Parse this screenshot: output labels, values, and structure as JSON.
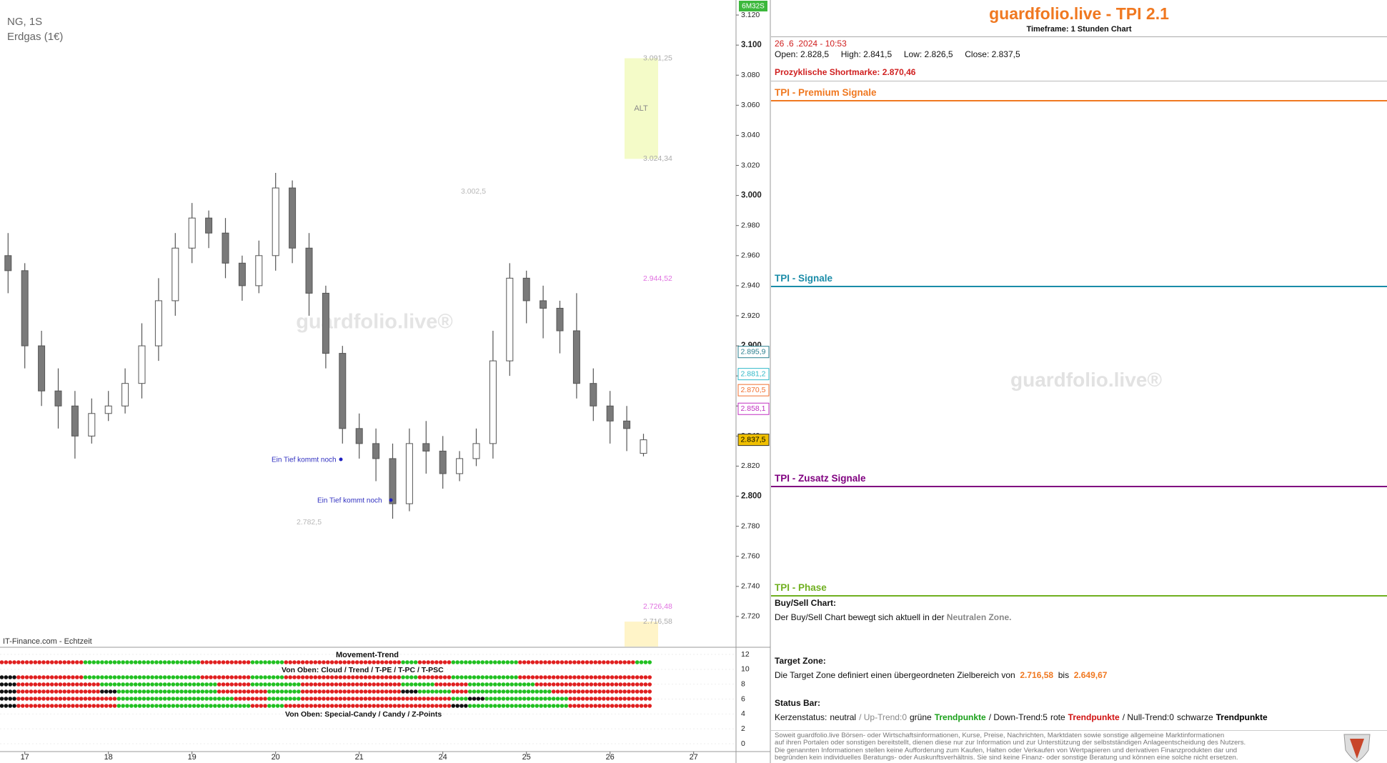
{
  "chart_data": {
    "type": "candlestick",
    "symbol": "NG, 1S",
    "name": "Erdgas (1€)",
    "source": "IT-Finance.com - Echtzeit",
    "timer": "6M32S",
    "watermark": "guardfolio.live®",
    "categories": [
      null,
      "17",
      null,
      null,
      null,
      null,
      "18",
      null,
      null,
      null,
      null,
      "19",
      null,
      null,
      null,
      null,
      "20",
      null,
      null,
      null,
      null,
      "21",
      null,
      null,
      null,
      null,
      "24",
      null,
      null,
      null,
      null,
      "25",
      null,
      null,
      null,
      null,
      "26",
      null,
      null,
      null,
      null,
      "27",
      null,
      null
    ],
    "open": [
      2.96,
      2.95,
      2.9,
      2.87,
      2.86,
      2.84,
      2.855,
      2.86,
      2.875,
      2.9,
      2.93,
      2.965,
      2.985,
      2.975,
      2.955,
      2.94,
      2.96,
      3.005,
      2.965,
      2.935,
      2.895,
      2.845,
      2.835,
      2.825,
      2.795,
      2.835,
      2.83,
      2.815,
      2.825,
      2.835,
      2.89,
      2.945,
      2.93,
      2.925,
      2.91,
      2.875,
      2.86,
      2.85,
      2.8285,
      null,
      null,
      null,
      null,
      null
    ],
    "high": [
      2.975,
      2.955,
      2.91,
      2.885,
      2.87,
      2.865,
      2.87,
      2.885,
      2.915,
      2.945,
      2.975,
      2.995,
      2.99,
      2.985,
      2.96,
      2.97,
      3.015,
      3.01,
      2.975,
      2.94,
      2.9,
      2.855,
      2.845,
      2.835,
      2.845,
      2.85,
      2.84,
      2.83,
      2.845,
      2.91,
      2.955,
      2.95,
      2.94,
      2.93,
      2.935,
      2.885,
      2.87,
      2.86,
      2.8415,
      null,
      null,
      null,
      null,
      null
    ],
    "low": [
      2.935,
      2.885,
      2.86,
      2.845,
      2.825,
      2.835,
      2.85,
      2.855,
      2.865,
      2.89,
      2.92,
      2.955,
      2.965,
      2.945,
      2.93,
      2.935,
      2.95,
      2.955,
      2.92,
      2.885,
      2.835,
      2.825,
      2.81,
      2.785,
      2.79,
      2.815,
      2.805,
      2.81,
      2.82,
      2.825,
      2.88,
      2.915,
      2.905,
      2.895,
      2.865,
      2.85,
      2.835,
      2.83,
      2.8265,
      null,
      null,
      null,
      null,
      null
    ],
    "close": [
      2.95,
      2.9,
      2.87,
      2.86,
      2.84,
      2.855,
      2.86,
      2.875,
      2.9,
      2.93,
      2.965,
      2.985,
      2.975,
      2.955,
      2.94,
      2.96,
      3.005,
      2.965,
      2.935,
      2.895,
      2.845,
      2.835,
      2.825,
      2.795,
      2.835,
      2.83,
      2.815,
      2.825,
      2.835,
      2.89,
      2.945,
      2.93,
      2.925,
      2.91,
      2.875,
      2.86,
      2.85,
      2.845,
      2.8375,
      null,
      null,
      null,
      null,
      null
    ],
    "up_color": "#ffffff",
    "down_color": "#7a7a7a",
    "wick_color": "#555555",
    "ylim": [
      2.7,
      3.13
    ],
    "yticks": [
      {
        "value": 3.12,
        "label": "3.120"
      },
      {
        "value": 3.1,
        "label": "3.100"
      },
      {
        "value": 3.08,
        "label": "3.080"
      },
      {
        "value": 3.06,
        "label": "3.060"
      },
      {
        "value": 3.04,
        "label": "3.040"
      },
      {
        "value": 3.02,
        "label": "3.020"
      },
      {
        "value": 3.0,
        "label": "3.000"
      },
      {
        "value": 2.98,
        "label": "2.980"
      },
      {
        "value": 2.96,
        "label": "2.960"
      },
      {
        "value": 2.94,
        "label": "2.940"
      },
      {
        "value": 2.92,
        "label": "2.920"
      },
      {
        "value": 2.9,
        "label": "2.900"
      },
      {
        "value": 2.88,
        "label": "2.880"
      },
      {
        "value": 2.86,
        "label": "2.860"
      },
      {
        "value": 2.84,
        "label": "2.840"
      },
      {
        "value": 2.82,
        "label": "2.820"
      },
      {
        "value": 2.8,
        "label": "2.800"
      },
      {
        "value": 2.78,
        "label": "2.780"
      },
      {
        "value": 2.76,
        "label": "2.760"
      },
      {
        "value": 2.74,
        "label": "2.740"
      },
      {
        "value": 2.72,
        "label": "2.720"
      }
    ],
    "price_markers": [
      {
        "value": 2.8959,
        "label": "2.895,9",
        "color": "#2a7f8f",
        "style": "outline"
      },
      {
        "value": 2.8812,
        "label": "2.881,2",
        "color": "#30b8c8",
        "style": "outline"
      },
      {
        "value": 2.8705,
        "label": "2.870,5",
        "color": "#f07030",
        "style": "outline"
      },
      {
        "value": 2.8581,
        "label": "2.858,1",
        "color": "#c030c0",
        "style": "outline"
      },
      {
        "value": 2.8375,
        "label": "2.837,5",
        "color": "#f0c000",
        "style": "filled"
      }
    ],
    "alt_zone": {
      "label": "ALT",
      "top": 3.09125,
      "bottom": 3.02434,
      "top_label": "3.091,25",
      "bottom_label": "3.024,34",
      "color": "#f4fbc8"
    },
    "target_zone": {
      "top": 2.71658,
      "top_label": "2.716,58",
      "color": "#fff4c8"
    },
    "price_labels": [
      {
        "value": 3.0025,
        "label": "3.002,5",
        "color": "#b8b8b8"
      },
      {
        "value": 2.94452,
        "label": "2.944,52",
        "color": "#e070e0"
      },
      {
        "value": 2.7825,
        "label": "2.782,5",
        "color": "#b8b8b8"
      },
      {
        "value": 2.72648,
        "label": "2.726,48",
        "color": "#e070e0"
      }
    ],
    "annotations": [
      "Ein Tief kommt noch",
      "Ein Tief kommt noch"
    ]
  },
  "indicator": {
    "title": "Movement-Trend",
    "label_upper": "Von Oben: Cloud / Trend / T-PE / T-PC / T-PSC",
    "label_lower": "Von Oben: Special-Candy / Candy / Z-Points",
    "ylim": [
      0,
      12
    ],
    "yticks": [
      0,
      2,
      4,
      6,
      8,
      10,
      12
    ],
    "up_color": "#22c022",
    "down_color": "#e02020",
    "flat_color": "#111111"
  },
  "panel": {
    "title": "guardfolio.live - TPI 2.1",
    "timeframe": "Timeframe: 1 Stunden Chart",
    "datetime": "26 .6 .2024 - 10:53",
    "ohlc": [
      [
        "Open:",
        "2.828,5"
      ],
      [
        "High:",
        "2.841,5"
      ],
      [
        "Low:",
        "2.826,5"
      ],
      [
        "Close:",
        "2.837,5"
      ]
    ],
    "shortmark": [
      "Prozyklische Shortmarke:",
      "2.870,46"
    ],
    "sections": [
      {
        "title": "TPI - Premium Signale",
        "color": "#f07820"
      },
      {
        "title": "TPI - Signale",
        "color": "#1a8ca8"
      },
      {
        "title": "TPI - Zusatz Signale",
        "color": "#800080"
      },
      {
        "title": "TPI - Phase",
        "color": "#70b020"
      }
    ],
    "watermark": "guardfolio.live®",
    "buysell": {
      "title": "Buy/Sell Chart:",
      "text": "Der Buy/Sell Chart bewegt sich aktuell in der",
      "zone": "Neutralen Zone."
    },
    "target": {
      "title": "Target Zone:",
      "text": "Die Target Zone definiert einen übergeordneten Zielbereich von",
      "from": "2.716,58",
      "sep": "bis",
      "to": "2.649,67"
    },
    "status": {
      "title": "Status Bar:",
      "parts": [
        "Kerzenstatus:",
        "neutral",
        "/ Up-Trend:0",
        "grüne",
        "Trendpunkte",
        "/ Down-Trend:5",
        "rote",
        "Trendpunkte",
        "/ Null-Trend:0",
        "schwarze",
        "Trendpunkte"
      ]
    },
    "disclaimer": [
      "Soweit guardfolio.live Börsen- oder Wirtschaftsinformationen, Kurse, Preise, Nachrichten, Marktdaten sowie sonstige allgemeine Marktinformationen",
      "auf ihren Portalen oder sonstigen bereitstellt, dienen diese nur zur Information und zur Unterstützung der selbstständigen Anlageentscheidung des Nutzers.",
      "Die genannten Informationen stellen keine Aufforderung zum Kaufen, Halten oder Verkaufen von Wertpapieren und derivativen Finanzprodukten dar und",
      "begründen kein individuelles Beratungs- oder Auskunftsverhältnis. Sie sind keine Finanz- oder sonstige Beratung und können eine solche nicht ersetzen."
    ]
  }
}
